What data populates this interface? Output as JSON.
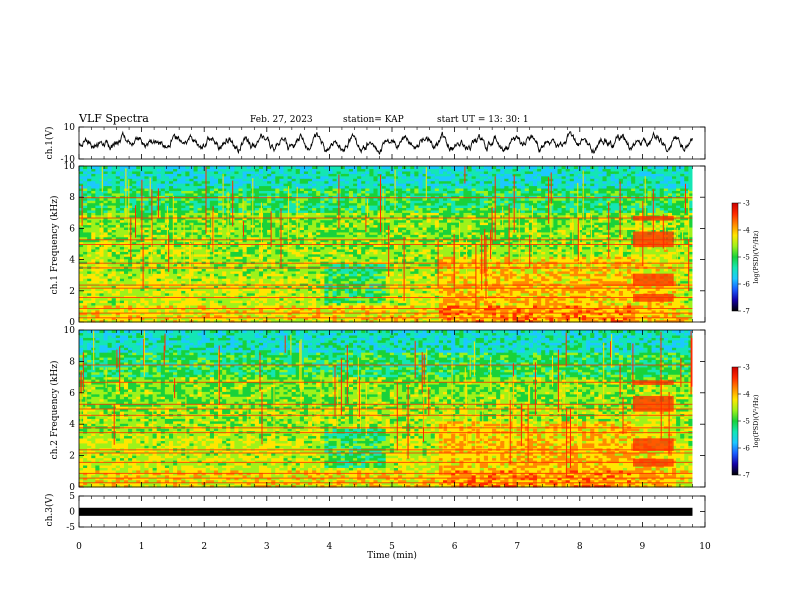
{
  "header": {
    "title": "VLF Spectra",
    "date": "Feb. 27, 2023",
    "station": "station= KAP",
    "start": "start  UT =   13: 30: 1"
  },
  "colorbar": {
    "label": "log(PSD)(V²/Hz)",
    "ticks": [
      "-3",
      "-4",
      "-5",
      "-6",
      "-7"
    ],
    "colors": [
      "#cc0000",
      "#ff2a00",
      "#ff8a00",
      "#ffe600",
      "#9ef21a",
      "#19d23a",
      "#14e6b4",
      "#1cc8ff",
      "#1a5cff",
      "#1400a6",
      "#000000"
    ]
  },
  "chart_data": [
    {
      "type": "line",
      "panel": "ch1-waveform",
      "ylabel": "ch.1(V)",
      "ylim": [
        -10,
        10
      ],
      "yticks": [
        "10",
        "-10"
      ],
      "xlim": [
        0,
        10
      ]
    },
    {
      "type": "heatmap",
      "panel": "ch1-spectrogram",
      "ylabel": "ch.1 Frequency (kHz)",
      "ylim": [
        0,
        10
      ],
      "yticks": [
        "0",
        "2",
        "4",
        "6",
        "8",
        "10"
      ],
      "xlim": [
        0,
        10
      ],
      "zlim": [
        -7,
        -3
      ]
    },
    {
      "type": "heatmap",
      "panel": "ch2-spectrogram",
      "ylabel": "ch.2 Frequency (kHz)",
      "ylim": [
        0,
        10
      ],
      "yticks": [
        "0",
        "2",
        "4",
        "6",
        "8",
        "10"
      ],
      "xlim": [
        0,
        10
      ],
      "zlim": [
        -7,
        -3
      ]
    },
    {
      "type": "line",
      "panel": "ch3-waveform",
      "ylabel": "ch.3(V)",
      "ylim": [
        -5,
        5
      ],
      "yticks": [
        "5",
        "0",
        "-5"
      ],
      "xlim": [
        0,
        10
      ]
    }
  ],
  "xaxis": {
    "label": "Time (min)",
    "ticks": [
      "0",
      "1",
      "2",
      "3",
      "4",
      "5",
      "6",
      "7",
      "8",
      "9",
      "10"
    ]
  }
}
